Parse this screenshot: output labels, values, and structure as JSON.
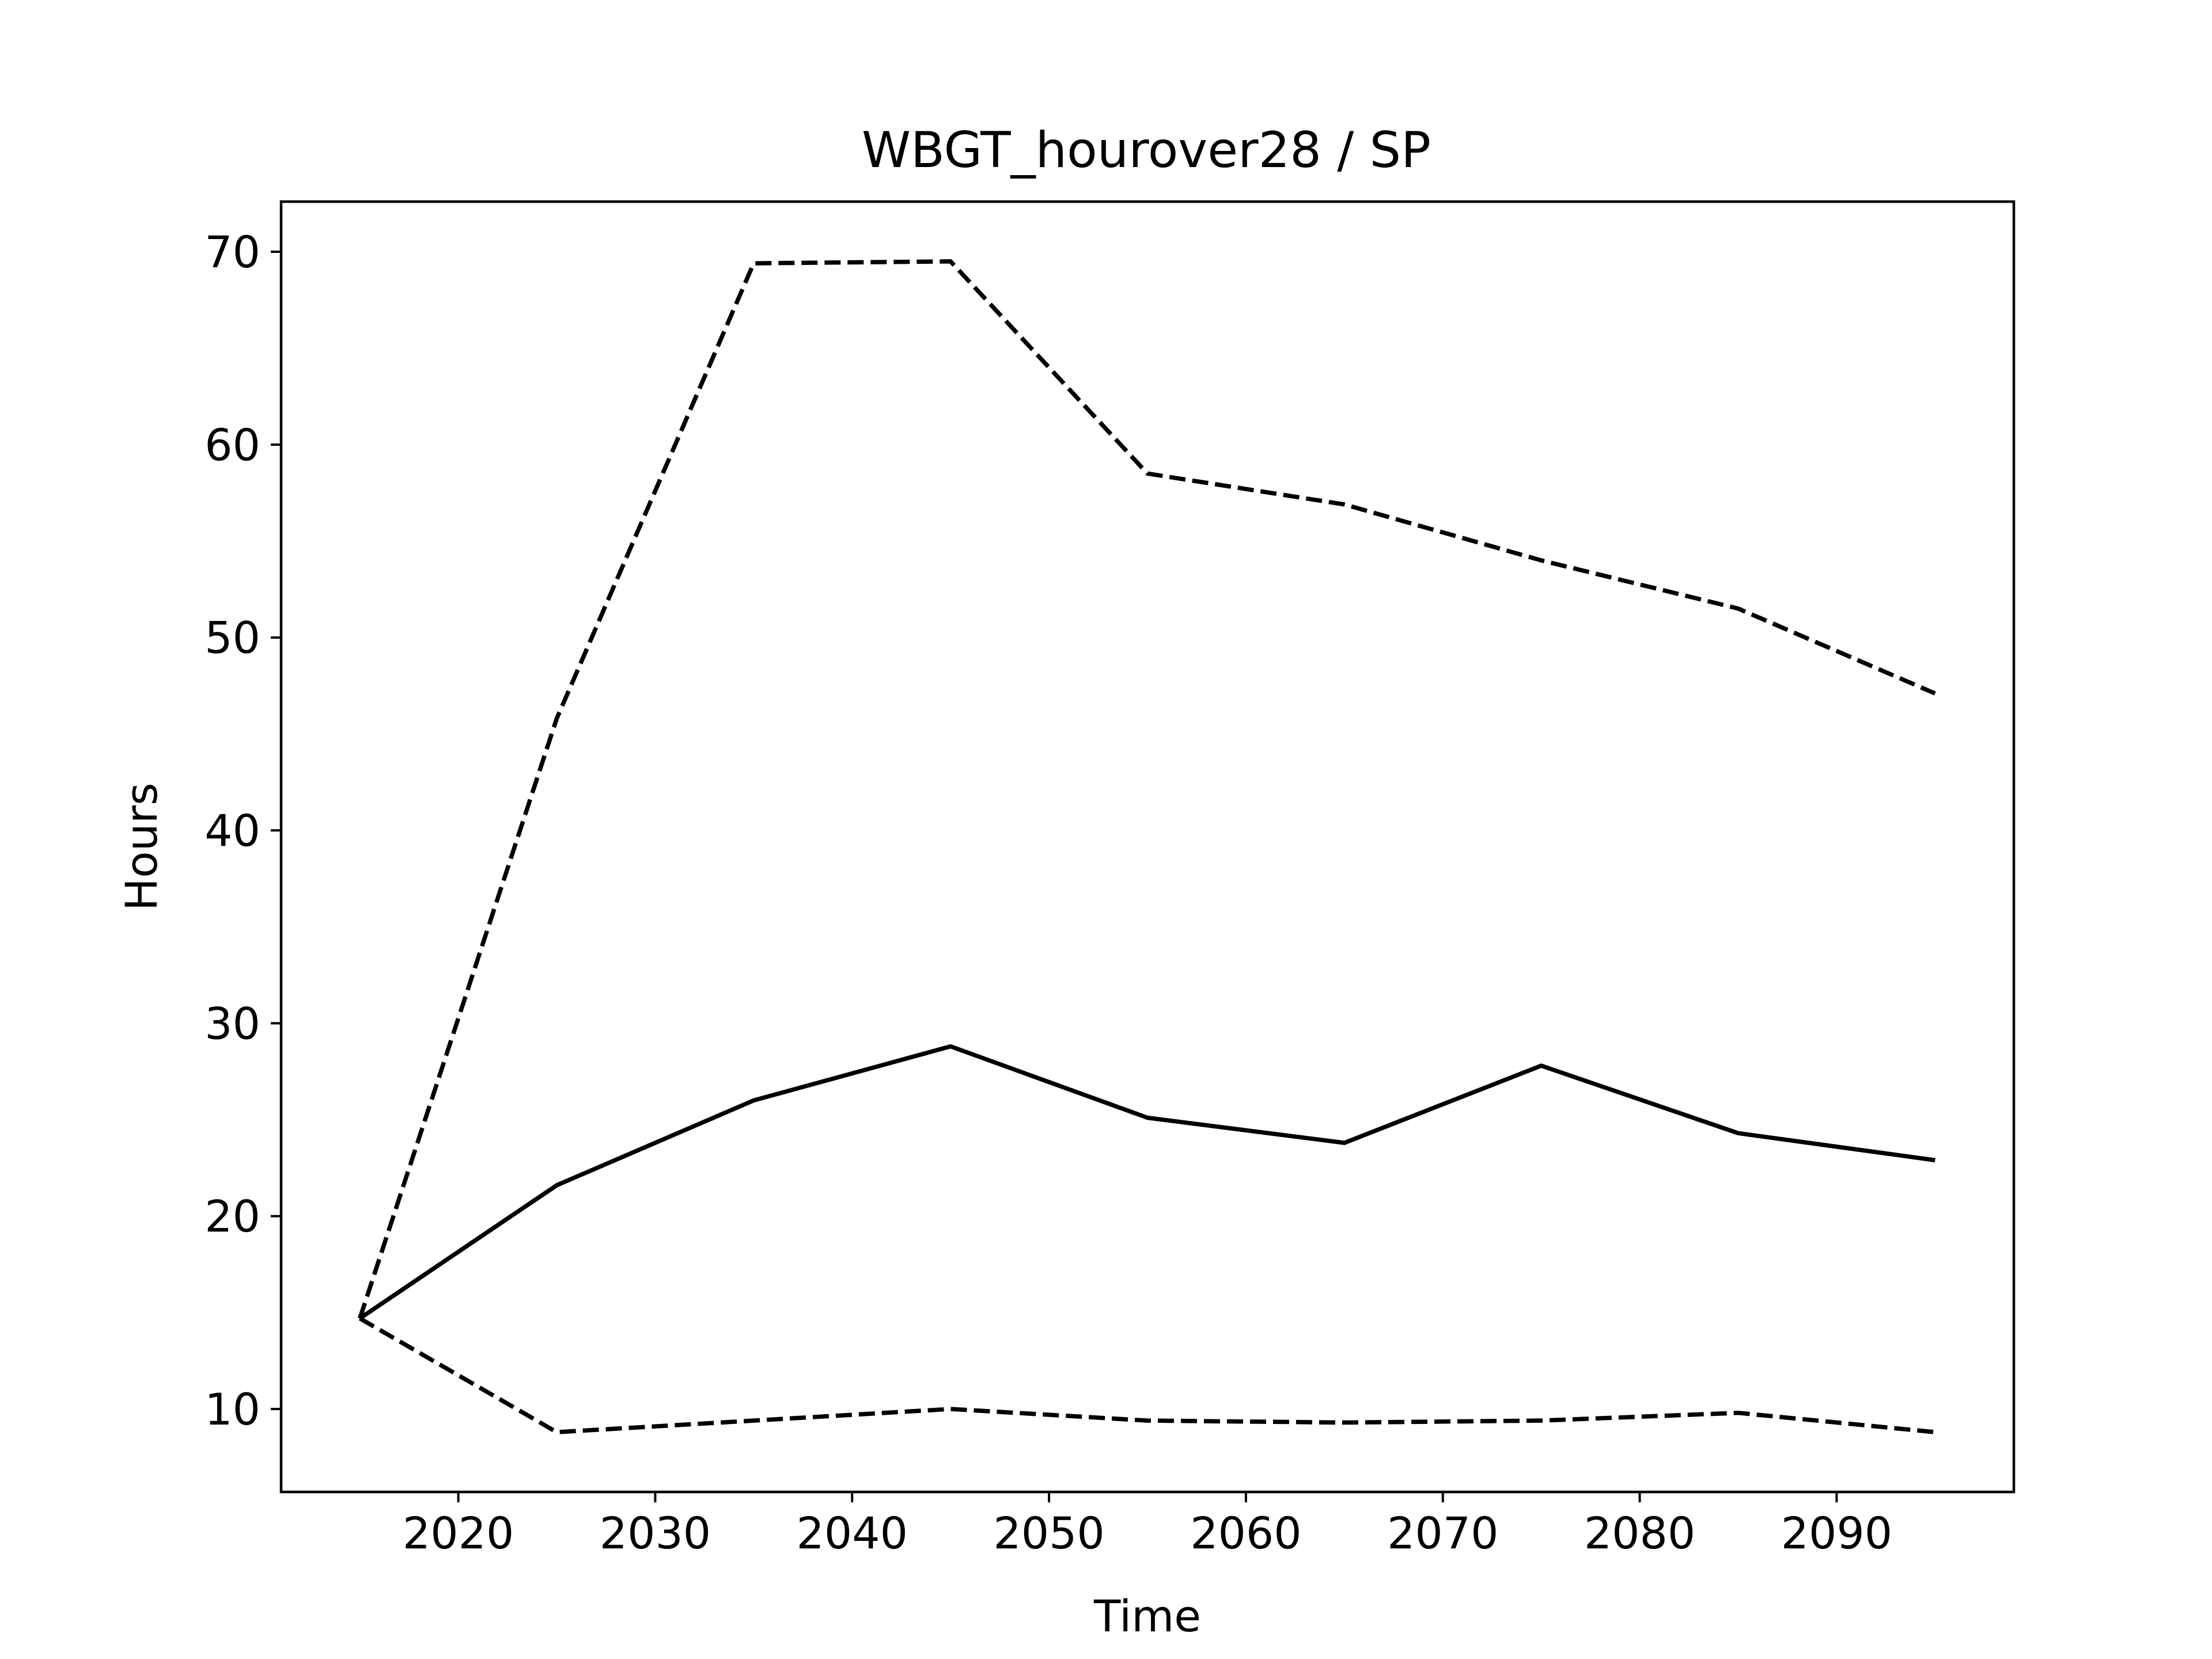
{
  "chart_data": {
    "type": "line",
    "title": "WBGT_hourover28 / SP",
    "xlabel": "Time",
    "ylabel": "Hours",
    "xlim": [
      2011,
      2099
    ],
    "ylim": [
      5.7,
      72.6
    ],
    "x_ticks": [
      2020,
      2030,
      2040,
      2050,
      2060,
      2070,
      2080,
      2090
    ],
    "y_ticks": [
      10,
      20,
      30,
      40,
      50,
      60,
      70
    ],
    "grid": false,
    "legend": "none",
    "x": [
      2015,
      2025,
      2035,
      2045,
      2055,
      2065,
      2075,
      2085,
      2095
    ],
    "series": [
      {
        "style": "solid",
        "color": "#000000",
        "values": [
          14.7,
          21.6,
          26.0,
          28.8,
          25.1,
          23.8,
          27.8,
          24.3,
          22.9
        ]
      },
      {
        "style": "dashed",
        "color": "#000000",
        "values": [
          14.7,
          45.8,
          69.4,
          69.5,
          58.5,
          56.9,
          54.0,
          51.5,
          47.1
        ]
      },
      {
        "style": "dashed",
        "color": "#000000",
        "values": [
          14.7,
          8.8,
          9.4,
          10.0,
          9.4,
          9.3,
          9.4,
          9.8,
          8.8
        ]
      }
    ]
  }
}
